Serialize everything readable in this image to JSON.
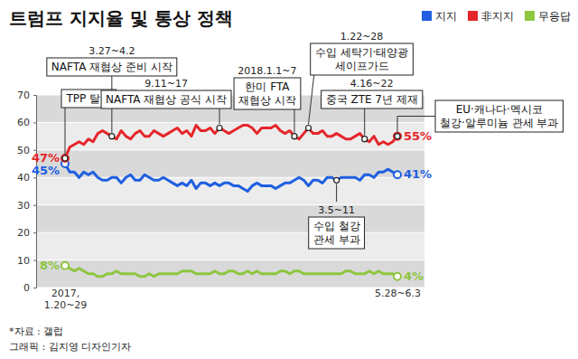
{
  "chart_data": {
    "type": "line",
    "title": "트럼프 지지율 및 통상 정책",
    "categories": [
      "2017, 1.20~29",
      null,
      null,
      null,
      null,
      null,
      null,
      null,
      null,
      null,
      null,
      null,
      null,
      null,
      null,
      null,
      null,
      null,
      null,
      null,
      null,
      null,
      null,
      null,
      null,
      null,
      null,
      null,
      null,
      null,
      null,
      null,
      null,
      null,
      null,
      null,
      null,
      null,
      null,
      null,
      null,
      null,
      null,
      null,
      null,
      null,
      null,
      null,
      null,
      null,
      null,
      null,
      null,
      null,
      null,
      null,
      null,
      null,
      null,
      null,
      null,
      null,
      null,
      null,
      null,
      null,
      null,
      null,
      null,
      null,
      null,
      "5.28~6.3"
    ],
    "series": [
      {
        "name": "지지",
        "color": "#1f5fe0",
        "values": [
          45,
          42,
          42,
          40,
          42,
          41,
          42,
          40,
          39,
          39,
          40,
          40,
          38,
          40,
          41,
          39,
          39,
          41,
          40,
          39,
          39,
          40,
          39,
          38,
          37,
          38,
          37,
          39,
          36,
          38,
          38,
          37,
          38,
          37,
          38,
          38,
          37,
          37,
          36,
          35,
          37,
          38,
          37,
          37,
          37,
          36,
          37,
          38,
          38,
          39,
          40,
          39,
          37,
          39,
          39,
          38,
          40,
          40,
          39,
          40,
          40,
          40,
          40,
          39,
          41,
          41,
          40,
          42,
          42,
          43,
          42,
          41
        ],
        "value_labels": [
          "45%",
          null,
          null,
          null,
          null,
          null,
          null,
          null,
          null,
          null,
          null,
          null,
          null,
          null,
          null,
          null,
          null,
          null,
          null,
          null,
          null,
          null,
          null,
          null,
          null,
          null,
          null,
          null,
          null,
          null,
          null,
          null,
          null,
          null,
          null,
          null,
          null,
          null,
          null,
          null,
          null,
          null,
          null,
          null,
          null,
          null,
          null,
          null,
          null,
          null,
          null,
          null,
          null,
          null,
          null,
          null,
          null,
          null,
          null,
          null,
          null,
          null,
          null,
          null,
          null,
          null,
          null,
          null,
          null,
          null,
          null,
          "41%"
        ]
      },
      {
        "name": "非지지",
        "color": "#e5262a",
        "values": [
          47,
          51,
          52,
          53,
          52,
          54,
          53,
          56,
          57,
          56,
          55,
          54,
          57,
          55,
          54,
          56,
          57,
          55,
          55,
          57,
          56,
          55,
          56,
          57,
          58,
          56,
          57,
          55,
          59,
          57,
          57,
          58,
          56,
          58,
          57,
          56,
          57,
          58,
          59,
          59,
          58,
          56,
          58,
          58,
          58,
          59,
          57,
          56,
          57,
          55,
          54,
          56,
          58,
          56,
          56,
          57,
          55,
          55,
          56,
          55,
          54,
          54,
          55,
          56,
          54,
          53,
          55,
          52,
          53,
          52,
          53,
          55
        ],
        "value_labels": [
          "47%",
          null,
          null,
          null,
          null,
          null,
          null,
          null,
          null,
          null,
          null,
          null,
          null,
          null,
          null,
          null,
          null,
          null,
          null,
          null,
          null,
          null,
          null,
          null,
          null,
          null,
          null,
          null,
          null,
          null,
          null,
          null,
          null,
          null,
          null,
          null,
          null,
          null,
          null,
          null,
          null,
          null,
          null,
          null,
          null,
          null,
          null,
          null,
          null,
          null,
          null,
          null,
          null,
          null,
          null,
          null,
          null,
          null,
          null,
          null,
          null,
          null,
          null,
          null,
          null,
          null,
          null,
          null,
          null,
          null,
          null,
          "55%"
        ]
      },
      {
        "name": "무응답",
        "color": "#8dc63f",
        "values": [
          8,
          7,
          6,
          7,
          6,
          5,
          5,
          4,
          4,
          5,
          5,
          6,
          5,
          5,
          5,
          5,
          4,
          4,
          5,
          4,
          5,
          5,
          5,
          5,
          5,
          6,
          6,
          6,
          5,
          5,
          5,
          5,
          6,
          5,
          5,
          6,
          6,
          5,
          5,
          6,
          5,
          6,
          5,
          5,
          5,
          5,
          6,
          6,
          5,
          6,
          6,
          5,
          5,
          5,
          5,
          5,
          5,
          5,
          5,
          5,
          6,
          6,
          5,
          5,
          5,
          6,
          5,
          6,
          5,
          5,
          5,
          4
        ],
        "value_labels": [
          "8%",
          null,
          null,
          null,
          null,
          null,
          null,
          null,
          null,
          null,
          null,
          null,
          null,
          null,
          null,
          null,
          null,
          null,
          null,
          null,
          null,
          null,
          null,
          null,
          null,
          null,
          null,
          null,
          null,
          null,
          null,
          null,
          null,
          null,
          null,
          null,
          null,
          null,
          null,
          null,
          null,
          null,
          null,
          null,
          null,
          null,
          null,
          null,
          null,
          null,
          null,
          null,
          null,
          null,
          null,
          null,
          null,
          null,
          null,
          null,
          null,
          null,
          null,
          null,
          null,
          null,
          null,
          null,
          null,
          null,
          null,
          "4%"
        ]
      }
    ],
    "ylim": [
      0,
      70
    ],
    "yticks": [
      0,
      10,
      20,
      30,
      40,
      50,
      60,
      70
    ],
    "grid": true,
    "legend": "top-right",
    "data_labels": true,
    "annotations": [
      {
        "x": 0,
        "text": [
          "TPP 탈퇴"
        ]
      },
      {
        "x": 10,
        "date": "3.27~4.2",
        "text": [
          "NAFTA 재협상 준비 시작"
        ]
      },
      {
        "x": 33,
        "date": "9.11~17",
        "text": [
          "NAFTA 재협상 공식 시작"
        ]
      },
      {
        "x": 49,
        "date": "2018.1.1~7",
        "text": [
          "한미 FTA",
          "재협상 시작"
        ]
      },
      {
        "x": 52,
        "date": "1.22~28",
        "text": [
          "수입 세탁기·태양광",
          "세이프가드"
        ]
      },
      {
        "x": 58,
        "date": "3.5~11",
        "text": [
          "수입 철강",
          "관세 부과"
        ]
      },
      {
        "x": 64,
        "date": "4.16~22",
        "text": [
          "중국 ZTE 7년 제재"
        ]
      },
      {
        "x": 71,
        "text": [
          "EU·캐나다·멕시코",
          "철강·알루미늄 관세 부과"
        ]
      }
    ],
    "source": "*자료 : 갤럽",
    "credit": "그래픽 : 김지영 디자인기자"
  }
}
